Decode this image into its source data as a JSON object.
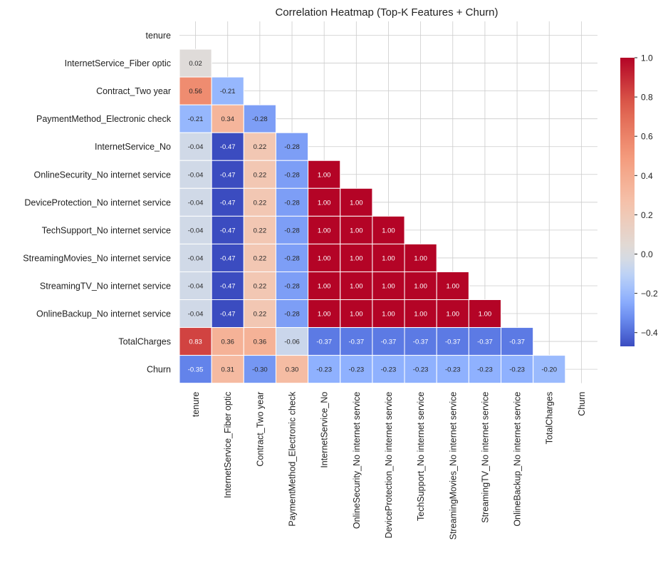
{
  "chart_data": {
    "type": "heatmap",
    "title": "Correlation Heatmap (Top-K Features + Churn)",
    "labels": [
      "tenure",
      "InternetService_Fiber optic",
      "Contract_Two year",
      "PaymentMethod_Electronic check",
      "InternetService_No",
      "OnlineSecurity_No internet service",
      "DeviceProtection_No internet service",
      "TechSupport_No internet service",
      "StreamingMovies_No internet service",
      "StreamingTV_No internet service",
      "OnlineBackup_No internet service",
      "TotalCharges",
      "Churn"
    ],
    "mask": "upper-triangle-including-diagonal",
    "values": [
      [],
      [
        0.02
      ],
      [
        0.56,
        -0.21
      ],
      [
        -0.21,
        0.34,
        -0.28
      ],
      [
        -0.04,
        -0.47,
        0.22,
        -0.28
      ],
      [
        -0.04,
        -0.47,
        0.22,
        -0.28,
        1.0
      ],
      [
        -0.04,
        -0.47,
        0.22,
        -0.28,
        1.0,
        1.0
      ],
      [
        -0.04,
        -0.47,
        0.22,
        -0.28,
        1.0,
        1.0,
        1.0
      ],
      [
        -0.04,
        -0.47,
        0.22,
        -0.28,
        1.0,
        1.0,
        1.0,
        1.0
      ],
      [
        -0.04,
        -0.47,
        0.22,
        -0.28,
        1.0,
        1.0,
        1.0,
        1.0,
        1.0
      ],
      [
        -0.04,
        -0.47,
        0.22,
        -0.28,
        1.0,
        1.0,
        1.0,
        1.0,
        1.0,
        1.0
      ],
      [
        0.83,
        0.36,
        0.36,
        -0.06,
        -0.37,
        -0.37,
        -0.37,
        -0.37,
        -0.37,
        -0.37,
        -0.37
      ],
      [
        -0.35,
        0.31,
        -0.3,
        0.3,
        -0.23,
        -0.23,
        -0.23,
        -0.23,
        -0.23,
        -0.23,
        -0.23,
        -0.2
      ]
    ],
    "colorbar": {
      "min": -0.47,
      "max": 1.0,
      "ticks": [
        "1.0",
        "0.8",
        "0.6",
        "0.4",
        "0.2",
        "0.0",
        "−0.2",
        "−0.4"
      ],
      "tick_values": [
        1.0,
        0.8,
        0.6,
        0.4,
        0.2,
        0.0,
        -0.2,
        -0.4
      ]
    },
    "colormap": "coolwarm",
    "colors": {
      "neg": "#3b4cc0",
      "mid": "#dddddd",
      "pos": "#b40426"
    },
    "grid": true
  }
}
